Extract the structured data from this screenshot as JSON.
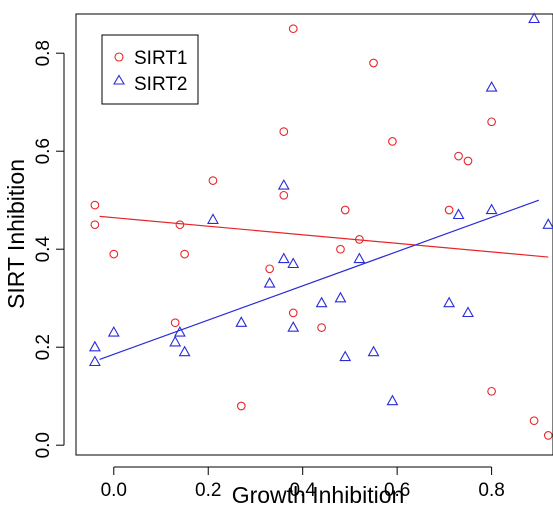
{
  "chart_data": {
    "type": "scatter",
    "xlabel": "Growth Inhibition",
    "ylabel": "SIRT Inhibition",
    "xlim": [
      -0.08,
      0.93
    ],
    "ylim": [
      -0.02,
      0.88
    ],
    "x_ticks": [
      0.0,
      0.2,
      0.4,
      0.6,
      0.8
    ],
    "x_tick_labels": [
      "0.0",
      "0.2",
      "0.4",
      "0.6",
      "0.8"
    ],
    "y_ticks": [
      0.0,
      0.2,
      0.4,
      0.6,
      0.8
    ],
    "y_tick_labels": [
      "0.0",
      "0.2",
      "0.4",
      "0.6",
      "0.8"
    ],
    "grid": false,
    "legend_position": "top-left",
    "series": [
      {
        "name": "SIRT1",
        "color": "#e8262a",
        "marker": "circle",
        "points": [
          [
            -0.04,
            0.49
          ],
          [
            -0.04,
            0.45
          ],
          [
            0.0,
            0.39
          ],
          [
            0.13,
            0.25
          ],
          [
            0.14,
            0.45
          ],
          [
            0.15,
            0.39
          ],
          [
            0.21,
            0.54
          ],
          [
            0.27,
            0.08
          ],
          [
            0.33,
            0.36
          ],
          [
            0.36,
            0.64
          ],
          [
            0.36,
            0.51
          ],
          [
            0.38,
            0.85
          ],
          [
            0.38,
            0.27
          ],
          [
            0.44,
            0.24
          ],
          [
            0.48,
            0.4
          ],
          [
            0.49,
            0.48
          ],
          [
            0.52,
            0.42
          ],
          [
            0.55,
            0.78
          ],
          [
            0.59,
            0.62
          ],
          [
            0.71,
            0.48
          ],
          [
            0.73,
            0.59
          ],
          [
            0.75,
            0.58
          ],
          [
            0.8,
            0.66
          ],
          [
            0.8,
            0.11
          ],
          [
            0.89,
            0.05
          ],
          [
            0.92,
            0.02
          ]
        ],
        "fit_line": [
          [
            -0.03,
            0.467
          ],
          [
            0.92,
            0.384
          ]
        ]
      },
      {
        "name": "SIRT2",
        "color": "#2b2bd8",
        "marker": "triangle",
        "points": [
          [
            -0.04,
            0.2
          ],
          [
            -0.04,
            0.17
          ],
          [
            0.0,
            0.23
          ],
          [
            0.13,
            0.21
          ],
          [
            0.14,
            0.23
          ],
          [
            0.15,
            0.19
          ],
          [
            0.21,
            0.46
          ],
          [
            0.27,
            0.25
          ],
          [
            0.33,
            0.33
          ],
          [
            0.36,
            0.53
          ],
          [
            0.36,
            0.38
          ],
          [
            0.38,
            0.37
          ],
          [
            0.38,
            0.24
          ],
          [
            0.44,
            0.29
          ],
          [
            0.48,
            0.3
          ],
          [
            0.49,
            0.18
          ],
          [
            0.52,
            0.38
          ],
          [
            0.55,
            0.19
          ],
          [
            0.59,
            0.09
          ],
          [
            0.71,
            0.29
          ],
          [
            0.73,
            0.47
          ],
          [
            0.75,
            0.27
          ],
          [
            0.8,
            0.73
          ],
          [
            0.8,
            0.48
          ],
          [
            0.89,
            0.87
          ],
          [
            0.92,
            0.45
          ]
        ],
        "fit_line": [
          [
            -0.03,
            0.175
          ],
          [
            0.9,
            0.5
          ]
        ]
      }
    ]
  }
}
